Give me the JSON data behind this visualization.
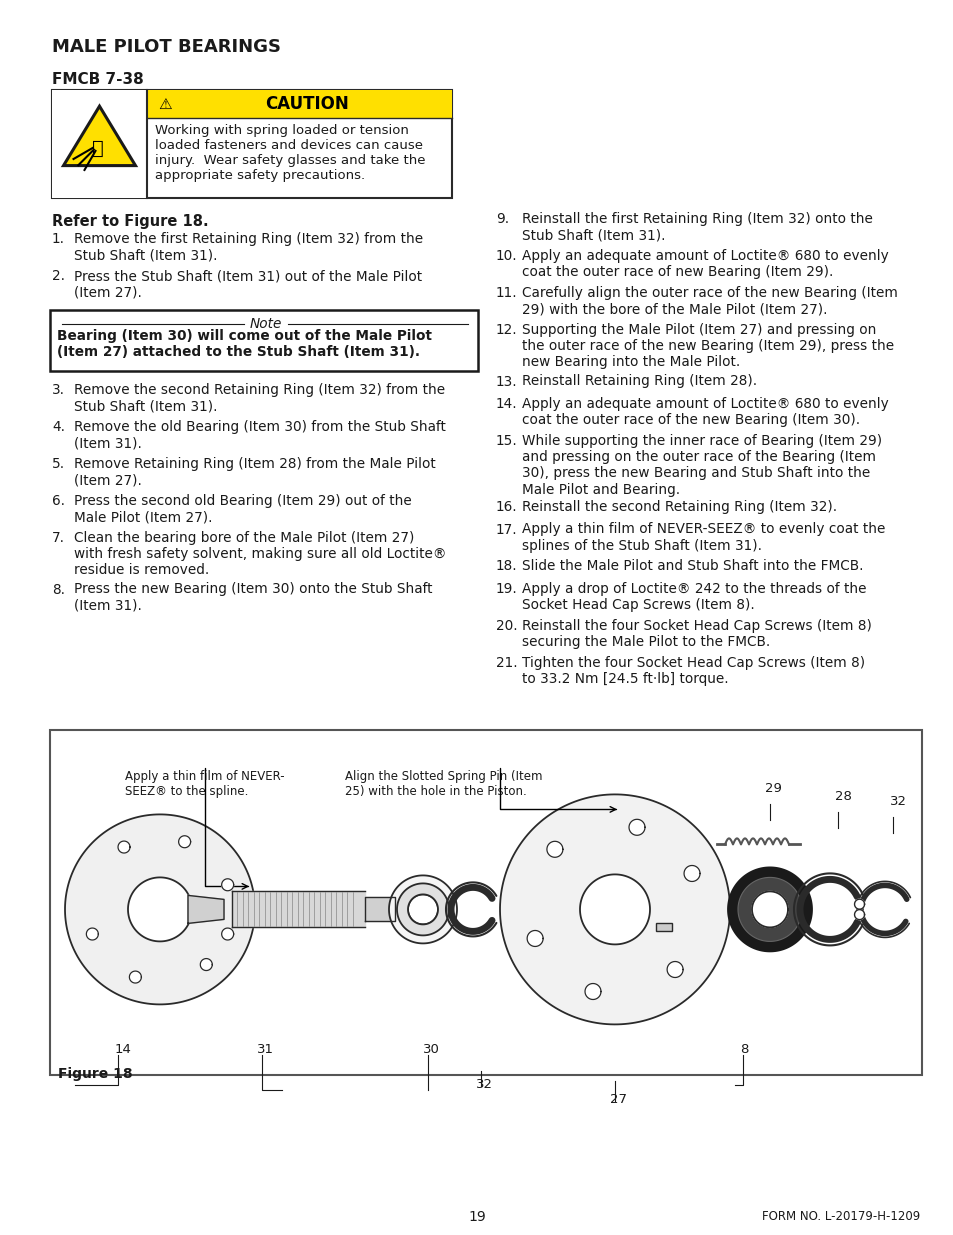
{
  "title": "MALE PILOT BEARINGS",
  "subtitle": "FMCB 7-38",
  "bg": "#ffffff",
  "tc": "#1a1a1a",
  "caution_header": "CAUTION",
  "caution_text": "Working with spring loaded or tension\nloaded fasteners and devices can cause\ninjury.  Wear safety glasses and take the\nappropriate safety precautions.",
  "refer_text": "Refer to Figure 18.",
  "note_title": "Note",
  "note_body": "Bearing (Item 30) will come out of the Male Pilot\n(Item 27) attached to the Stub Shaft (Item 31).",
  "left_steps": [
    [
      "1.",
      "Remove the first Retaining Ring (Item 32) from the\nStub Shaft (Item 31)."
    ],
    [
      "2.",
      "Press the Stub Shaft (Item 31) out of the Male Pilot\n(Item 27)."
    ],
    [
      "3.",
      "Remove the second Retaining Ring (Item 32) from the\nStub Shaft (Item 31)."
    ],
    [
      "4.",
      "Remove the old Bearing (Item 30) from the Stub Shaft\n(Item 31)."
    ],
    [
      "5.",
      "Remove Retaining Ring (Item 28) from the Male Pilot\n(Item 27)."
    ],
    [
      "6.",
      "Press the second old Bearing (Item 29) out of the\nMale Pilot (Item 27)."
    ],
    [
      "7.",
      "Clean the bearing bore of the Male Pilot (Item 27)\nwith fresh safety solvent, making sure all old Loctite®\nresidue is removed."
    ],
    [
      "8.",
      "Press the new Bearing (Item 30) onto the Stub Shaft\n(Item 31)."
    ]
  ],
  "right_steps": [
    [
      "9.",
      "Reinstall the first Retaining Ring (Item 32) onto the\nStub Shaft (Item 31)."
    ],
    [
      "10.",
      "Apply an adequate amount of Loctite® 680 to evenly\ncoat the outer race of new Bearing (Item 29)."
    ],
    [
      "11.",
      "Carefully align the outer race of the new Bearing (Item\n29) with the bore of the Male Pilot (Item 27)."
    ],
    [
      "12.",
      "Supporting the Male Pilot (Item 27) and pressing on\nthe outer race of the new Bearing (Item 29), press the\nnew Bearing into the Male Pilot."
    ],
    [
      "13.",
      "Reinstall Retaining Ring (Item 28)."
    ],
    [
      "14.",
      "Apply an adequate amount of Loctite® 680 to evenly\ncoat the outer race of the new Bearing (Item 30)."
    ],
    [
      "15.",
      "While supporting the inner race of Bearing (Item 29)\nand pressing on the outer race of the Bearing (Item\n30), press the new Bearing and Stub Shaft into the\nMale Pilot and Bearing."
    ],
    [
      "16.",
      "Reinstall the second Retaining Ring (Item 32)."
    ],
    [
      "17.",
      "Apply a thin film of NEVER-SEEZ® to evenly coat the\nsplines of the Stub Shaft (Item 31)."
    ],
    [
      "18.",
      "Slide the Male Pilot and Stub Shaft into the FMCB."
    ],
    [
      "19.",
      "Apply a drop of Loctite® 242 to the threads of the\nSocket Head Cap Screws (Item 8)."
    ],
    [
      "20.",
      "Reinstall the four Socket Head Cap Screws (Item 8)\nsecuring the Male Pilot to the FMCB."
    ],
    [
      "21.",
      "Tighten the four Socket Head Cap Screws (Item 8)\nto 33.2 Nm [24.5 ft·lb] torque."
    ]
  ],
  "figure_label": "Figure 18",
  "page_number": "19",
  "form_number": "FORM NO. L-20179-H-1209"
}
